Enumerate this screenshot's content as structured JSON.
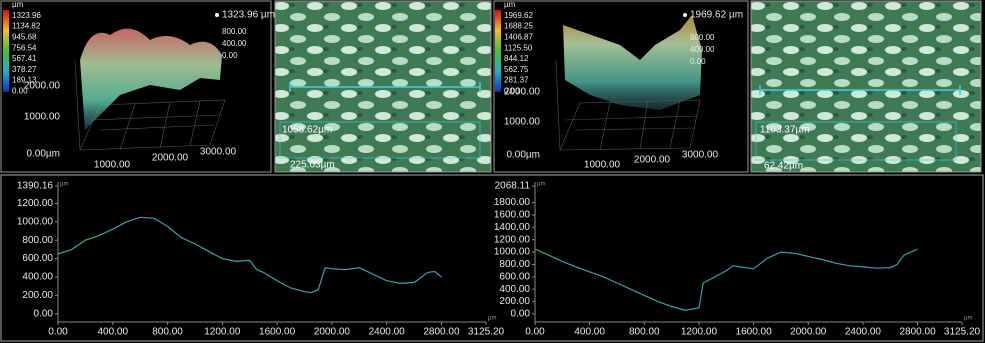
{
  "panels": [
    {
      "colorbar": [
        "µm",
        "1323.96",
        "1134.82",
        "945.68",
        "756.54",
        "567.41",
        "378.27",
        "189.13",
        "0.00"
      ],
      "max_label": "1323.96 µm",
      "z_labels": [
        "800.00",
        "400.00",
        "0.00"
      ],
      "y_labels": [
        "2000.00",
        "1000.00",
        "0.00µm"
      ],
      "x_labels": [
        "1000.00",
        "2000.00",
        "3000.00"
      ]
    },
    {
      "measure_labels": [
        "1058.62µm",
        "225.03µm"
      ]
    },
    {
      "colorbar": [
        "µm",
        "1969.62",
        "1688.25",
        "1406.87",
        "1125.50",
        "844.12",
        "562.75",
        "281.37",
        "0.00"
      ],
      "max_label": "1969.62 µm",
      "z_labels": [
        "800.00",
        "400.00",
        "0.00"
      ],
      "y_labels": [
        "2000.00",
        "1000.00",
        "0.00µm"
      ],
      "x_labels": [
        "1000.00",
        "2000.00",
        "3000.00"
      ]
    },
    {
      "measure_labels": [
        "1103.37µm",
        "62.42µm"
      ]
    }
  ],
  "chart_data": [
    {
      "type": "line",
      "y_unit": "µm",
      "x_unit": "µm",
      "color": "#3aa0ad",
      "x": [
        0,
        100,
        200,
        300,
        400,
        500,
        600,
        700,
        800,
        900,
        1000,
        1100,
        1200,
        1300,
        1400,
        1450,
        1500,
        1600,
        1700,
        1800,
        1850,
        1900,
        1950,
        2000,
        2100,
        2200,
        2300,
        2400,
        2500,
        2600,
        2700,
        2750,
        2800
      ],
      "values": [
        650,
        700,
        800,
        850,
        920,
        1000,
        1050,
        1040,
        950,
        830,
        760,
        680,
        600,
        570,
        580,
        480,
        450,
        360,
        280,
        240,
        230,
        260,
        500,
        490,
        480,
        500,
        430,
        360,
        330,
        340,
        450,
        460,
        400
      ],
      "xlim": [
        0,
        3125.2
      ],
      "ylim": [
        -90,
        1390.16
      ],
      "xticks": [
        {
          "value": 0,
          "label": "0.00"
        },
        {
          "value": 400,
          "label": "400.00"
        },
        {
          "value": 800,
          "label": "800.00"
        },
        {
          "value": 1200,
          "label": "1200.00"
        },
        {
          "value": 1600,
          "label": "1600.00"
        },
        {
          "value": 2000,
          "label": "2000.00"
        },
        {
          "value": 2400,
          "label": "2400.00"
        },
        {
          "value": 2800,
          "label": "2800.00"
        },
        {
          "value": 3125.2,
          "label": "3125.20"
        }
      ],
      "yticks": [
        {
          "value": 0,
          "label": "0.00"
        },
        {
          "value": 200,
          "label": "200.00"
        },
        {
          "value": 400,
          "label": "400.00"
        },
        {
          "value": 600,
          "label": "600.00"
        },
        {
          "value": 800,
          "label": "800.00"
        },
        {
          "value": 1000,
          "label": "1000.00"
        },
        {
          "value": 1200,
          "label": "1200.00"
        },
        1390.16
      ]
    },
    {
      "type": "line",
      "y_unit": "µm",
      "x_unit": "µm",
      "color": "#3aa0ad",
      "x": [
        0,
        100,
        200,
        300,
        400,
        500,
        600,
        700,
        800,
        900,
        1000,
        1100,
        1200,
        1230,
        1300,
        1400,
        1450,
        1500,
        1600,
        1700,
        1800,
        1900,
        2000,
        2100,
        2200,
        2300,
        2400,
        2500,
        2600,
        2650,
        2700,
        2800
      ],
      "values": [
        1050,
        950,
        850,
        760,
        680,
        600,
        500,
        400,
        300,
        200,
        120,
        60,
        100,
        500,
        580,
        700,
        780,
        760,
        730,
        900,
        1000,
        980,
        930,
        880,
        820,
        780,
        760,
        740,
        750,
        800,
        950,
        1050
      ],
      "xlim": [
        0,
        3125.2
      ],
      "ylim": [
        -130,
        2068.11
      ],
      "xticks": [
        {
          "value": 0,
          "label": "0.00"
        },
        {
          "value": 400,
          "label": "400.00"
        },
        {
          "value": 800,
          "label": "800.00"
        },
        {
          "value": 1200,
          "label": "1200.00"
        },
        {
          "value": 1600,
          "label": "1600.00"
        },
        {
          "value": 2000,
          "label": "2000.00"
        },
        {
          "value": 2400,
          "label": "2400.00"
        },
        {
          "value": 2800,
          "label": "2800.00"
        },
        {
          "value": 3125.2,
          "label": "3125.20"
        }
      ],
      "yticks": [
        {
          "value": 0,
          "label": "0.00"
        },
        {
          "value": 200,
          "label": "200.00"
        },
        {
          "value": 400,
          "label": "400.00"
        },
        {
          "value": 600,
          "label": "600.00"
        },
        {
          "value": 800,
          "label": "800.00"
        },
        {
          "value": 1000,
          "label": "1000.00"
        },
        {
          "value": 1200,
          "label": "1200.00"
        },
        {
          "value": 1400,
          "label": "1400.00"
        },
        {
          "value": 1600,
          "label": "1600.00"
        },
        {
          "value": 1800,
          "label": "1800.00"
        },
        2068.11
      ]
    }
  ]
}
